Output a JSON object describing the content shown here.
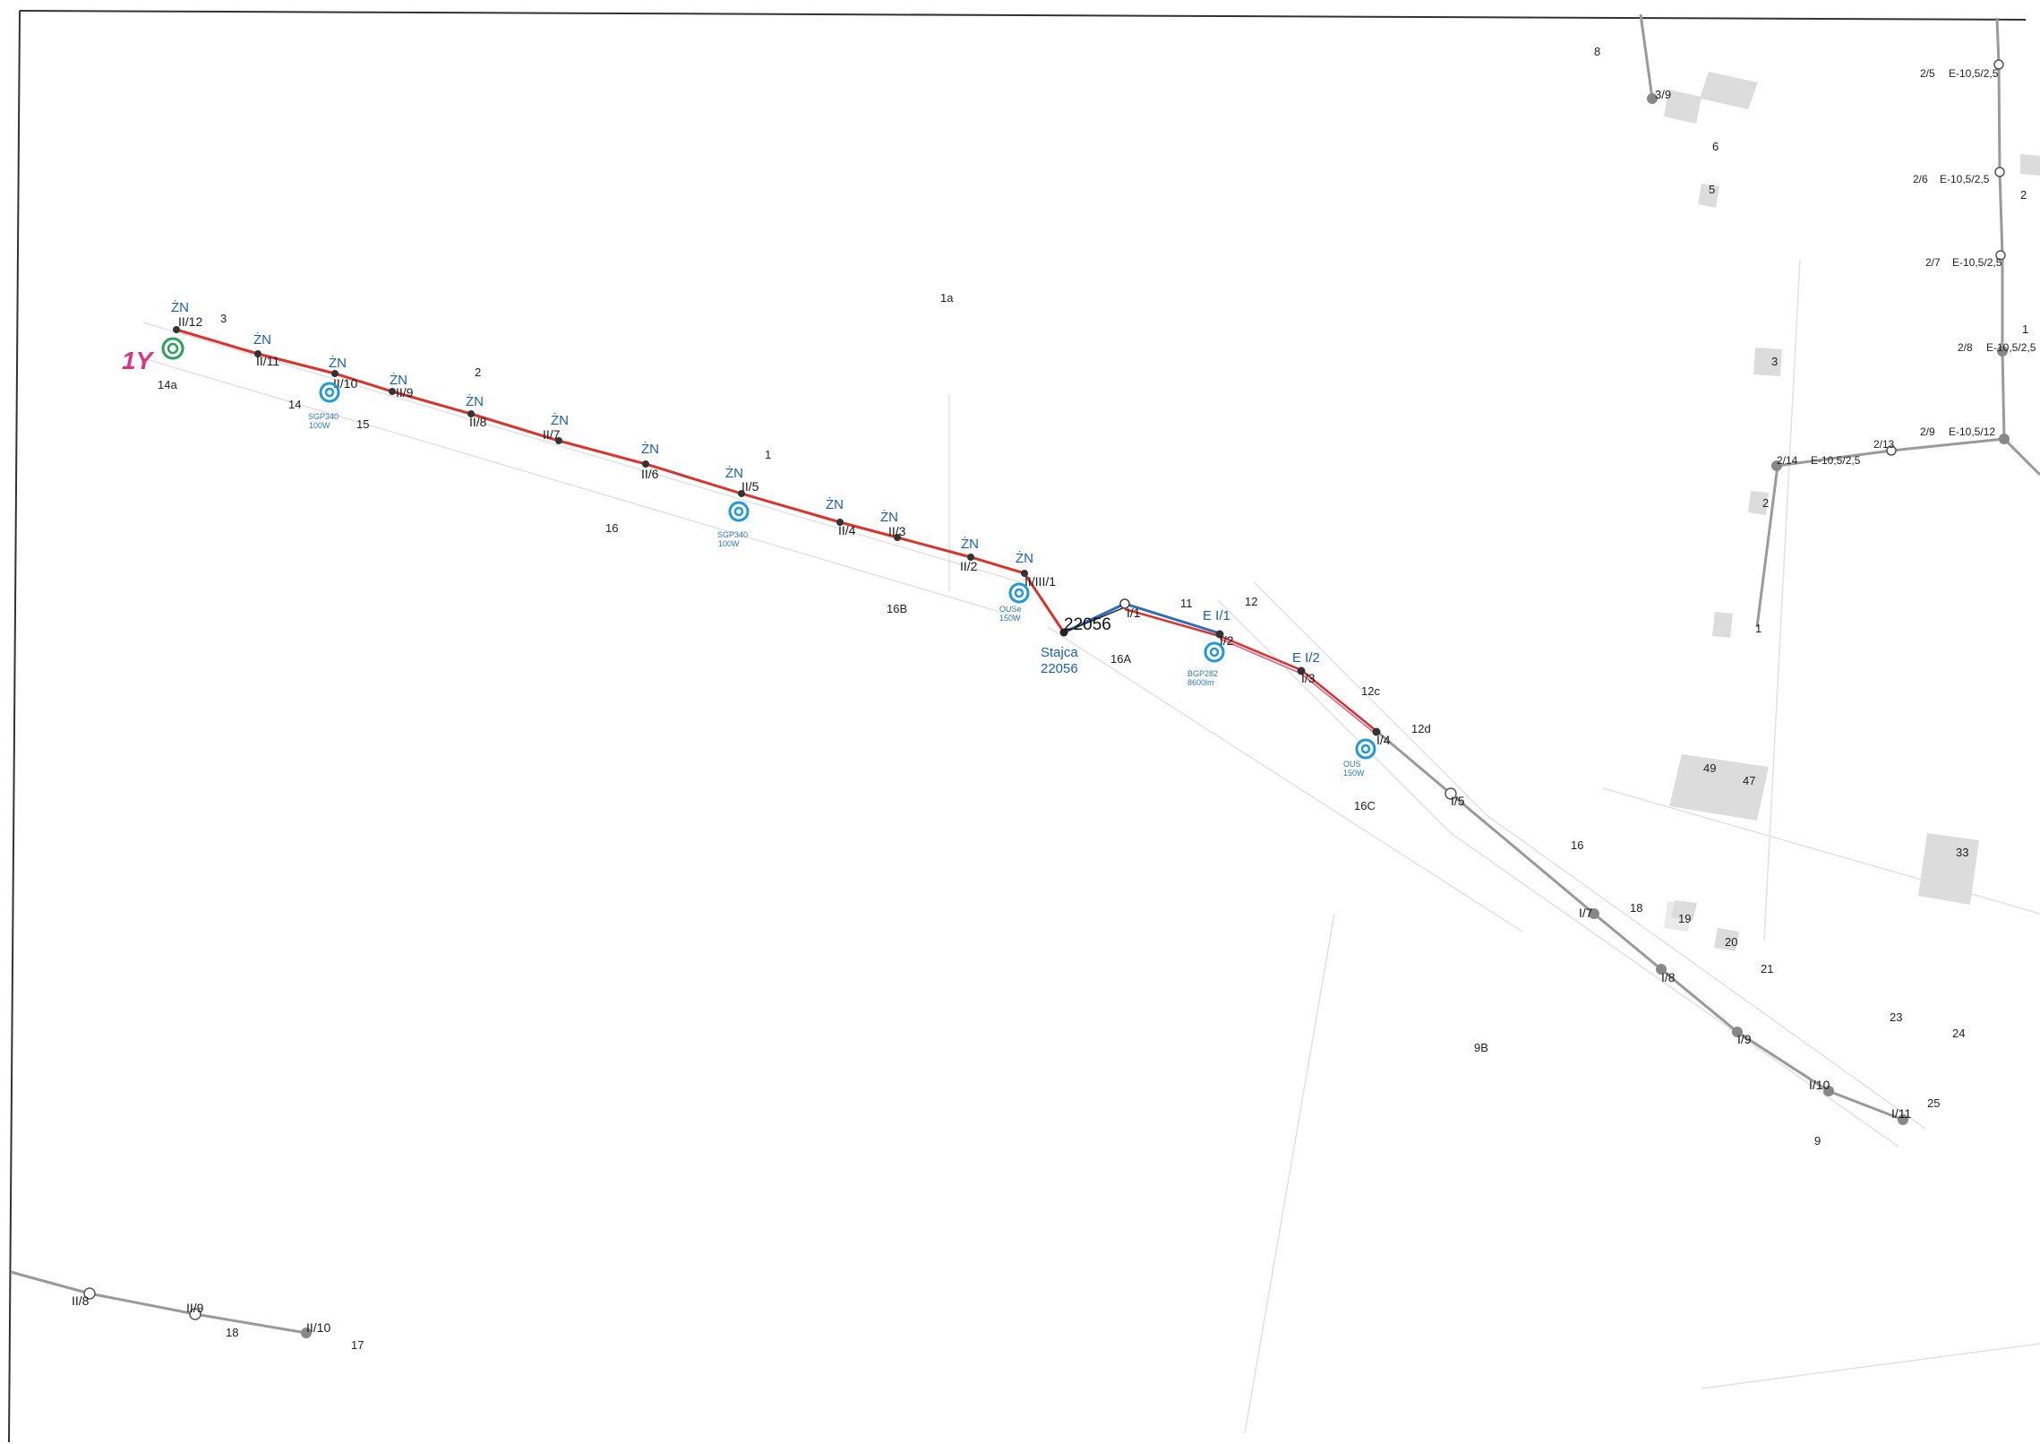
{
  "map": {
    "circuit_marker": "1Y",
    "colors": {
      "circuit_ii": "#d9342b",
      "circuit_i_red": "#d9342b",
      "circuit_i_blue": "#2f6db5",
      "pink_line": "#e05a8a",
      "existing_line": "#9a9a9a",
      "lamp": "#1e9ad6",
      "marker_1y": "#e0337f",
      "marker_circle": "#2e9e5a",
      "zn_text": "#1a5fb4"
    },
    "station": {
      "number": "22056",
      "name_line1": "Stajca",
      "name_line2": "22056"
    },
    "circuit_ii_poles": [
      "II/12",
      "II/11",
      "II/10",
      "II/9",
      "II/8",
      "II/7",
      "II/6",
      "II/5",
      "II/4",
      "II/3",
      "II/2",
      "II/III/1"
    ],
    "zn_labels": [
      "ŻN",
      "ŻN",
      "ŻN",
      "ŻN",
      "ŻN",
      "ŻN",
      "ŻN",
      "ŻN",
      "ŻN",
      "ŻN",
      "ŻN",
      "ŻN"
    ],
    "circuit_i_poles": [
      "I/1",
      "I/2",
      "I/3",
      "I/4",
      "I/5",
      "I/7",
      "I/8",
      "I/9",
      "I/10",
      "I/11"
    ],
    "e_labels": [
      "E I/1",
      "E I/2"
    ],
    "lamps": [
      {
        "type": "SGP340",
        "power": "100W"
      },
      {
        "type": "SGP340",
        "power": "100W"
      },
      {
        "type": "OUSe",
        "power": "150W"
      },
      {
        "type": "BGP282",
        "power": "8600lm"
      },
      {
        "type": "OUS",
        "power": "150W"
      }
    ],
    "right_line": [
      {
        "pole": "2/5",
        "spec": "E-10,5/2,5"
      },
      {
        "pole": "2/6",
        "spec": "E-10,5/2,5"
      },
      {
        "pole": "2/7",
        "spec": "E-10,5/2,5"
      },
      {
        "pole": "2/8",
        "spec": "E-10,5/2,5"
      },
      {
        "pole": "2/9",
        "spec": "E-10,5/12"
      },
      {
        "pole": "2/13",
        "spec": ""
      },
      {
        "pole": "2/14",
        "spec": "E-10,5/2,5"
      }
    ],
    "bottom_line": [
      "II/8",
      "II/9",
      "II/10"
    ],
    "parcels": [
      "3",
      "14a",
      "14",
      "15",
      "2",
      "1a",
      "1",
      "16",
      "16B",
      "16A",
      "11",
      "12",
      "12c",
      "12d",
      "16C",
      "8",
      "3/9",
      "6",
      "5",
      "2",
      "1",
      "3",
      "2",
      "1",
      "49",
      "47",
      "33",
      "16",
      "18",
      "19",
      "20",
      "21",
      "23",
      "24",
      "25",
      "9",
      "9B",
      "18",
      "17"
    ]
  }
}
